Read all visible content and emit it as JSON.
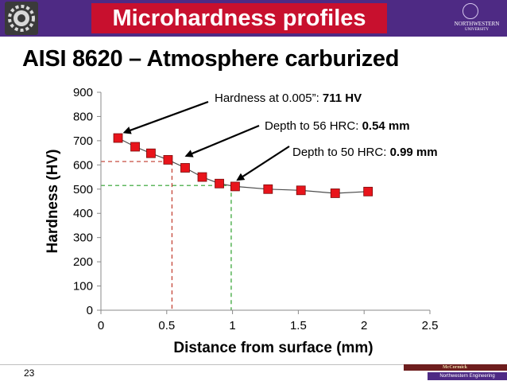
{
  "slide": {
    "banner_title": "Microhardness profiles",
    "subtitle": "AISI 8620 – Atmosphere carburized",
    "page_number": "23",
    "logo_right": {
      "name": "NORTHWESTERN",
      "sub": "UNIVERSITY"
    },
    "footer_brand": {
      "name": "McCormick",
      "sub": "Northwestern Engineering"
    }
  },
  "colors": {
    "banner": "#4e2a84",
    "title_box": "#c8102e",
    "marker": "#e8141b",
    "line": "#4d4d4d",
    "guide_56hrc": "#c0392b",
    "guide_50hrc": "#2ca02c",
    "arrow": "#000000"
  },
  "chart_data": {
    "type": "line",
    "xlabel": "Distance from surface (mm)",
    "ylabel": "Hardness (HV)",
    "xlim": [
      0,
      2.5
    ],
    "ylim": [
      0,
      900
    ],
    "xticks": [
      "0",
      "0.5",
      "1",
      "1.5",
      "2",
      "2.5"
    ],
    "yticks": [
      "0",
      "100",
      "200",
      "300",
      "400",
      "500",
      "600",
      "700",
      "800",
      "900"
    ],
    "grid": false,
    "series": [
      {
        "x": [
          0.13,
          0.26,
          0.38,
          0.51,
          0.64,
          0.77,
          0.9,
          1.02,
          1.27,
          1.52,
          1.78,
          2.03
        ],
        "y": [
          711,
          675,
          648,
          621,
          588,
          550,
          523,
          511,
          500,
          495,
          483,
          490
        ]
      }
    ],
    "guides": [
      {
        "id": "56hrc",
        "x": 0.54,
        "y": 614,
        "color": "#c0392b"
      },
      {
        "id": "50hrc",
        "x": 0.99,
        "y": 515,
        "color": "#2ca02c"
      }
    ],
    "annotations": [
      {
        "id": "hardness",
        "label": "Hardness at 0.005”: ",
        "value": "711 HV",
        "target": [
          0.13,
          711
        ]
      },
      {
        "id": "depth56",
        "label": "Depth to 56 HRC: ",
        "value": "0.54 mm",
        "target": [
          0.6,
          614
        ]
      },
      {
        "id": "depth50",
        "label": "Depth to 50 HRC: ",
        "value": "0.99 mm",
        "target": [
          0.99,
          515
        ]
      }
    ]
  }
}
